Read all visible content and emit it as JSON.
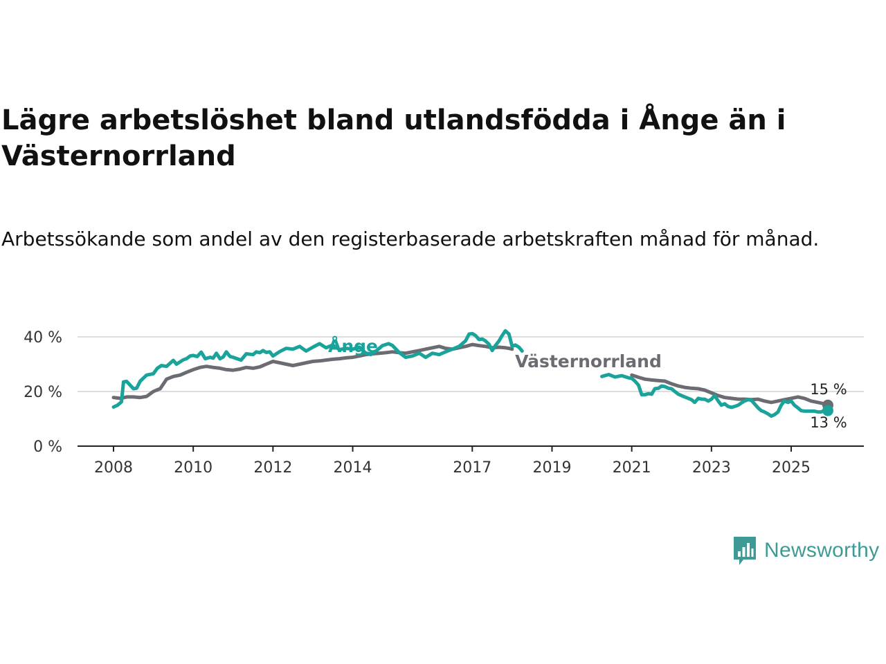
{
  "title": "Lägre arbetslöshet bland utlandsfödda i Ånge än i Västernorrland",
  "subtitle": "Arbetssökande som andel av den registerbaserade arbetskraften månad för månad.",
  "brand": {
    "name": "Newsworthy",
    "icon": "newsworthy-logo-icon",
    "color": "#3e9a94"
  },
  "colors": {
    "ange": "#1aa39a",
    "vasternorrland": "#6b6b72",
    "grid": "#dddddd",
    "axis": "#222222"
  },
  "chart_data": {
    "type": "line",
    "title": "Lägre arbetslöshet bland utlandsfödda i Ånge än i Västernorrland",
    "subtitle": "Arbetssökande som andel av den registerbaserade arbetskraften månad för månad.",
    "xlabel": "",
    "ylabel": "",
    "xlim": [
      2008,
      2026.4
    ],
    "ylim": [
      0,
      42
    ],
    "yticks": [
      0,
      20,
      40
    ],
    "ytick_labels": [
      "0 %",
      "20 %",
      "40 %"
    ],
    "xticks": [
      2008,
      2010,
      2012,
      2014,
      2017,
      2019,
      2021,
      2023,
      2025
    ],
    "xtick_labels": [
      "2008",
      "2010",
      "2012",
      "2014",
      "2017",
      "2019",
      "2021",
      "2023",
      "2025"
    ],
    "grid": true,
    "legend": "inline labels",
    "series": [
      {
        "name": "Ånge",
        "label": "Ånge",
        "end_label": "13 %",
        "segments": [
          {
            "x": [
              2008.0,
              2008.1,
              2008.2,
              2008.25,
              2008.33,
              2008.5,
              2008.58,
              2008.67,
              2008.83,
              2009.0,
              2009.1,
              2009.2,
              2009.33,
              2009.5,
              2009.58,
              2009.75,
              2009.83,
              2009.92,
              2010.0,
              2010.1,
              2010.2,
              2010.3,
              2010.42,
              2010.5,
              2010.58,
              2010.67,
              2010.75,
              2010.83,
              2010.92,
              2011.0,
              2011.1,
              2011.2,
              2011.33,
              2011.5,
              2011.58,
              2011.67,
              2011.75,
              2011.83,
              2011.92,
              2012.0,
              2012.17,
              2012.33,
              2012.5,
              2012.67,
              2012.83,
              2013.0,
              2013.17,
              2013.33,
              2013.5,
              2013.67,
              2013.83,
              2014.0,
              2014.17,
              2014.33,
              2014.45
            ],
            "y": [
              14.3,
              15.0,
              16.2,
              23.5,
              23.7,
              21.0,
              21.2,
              23.8,
              26.0,
              26.5,
              28.5,
              29.5,
              29.2,
              31.4,
              30.0,
              31.6,
              32.0,
              33.0,
              33.2,
              32.8,
              34.4,
              32.0,
              32.5,
              32.2,
              34.0,
              32.0,
              32.6,
              34.5,
              32.8,
              32.5,
              32.0,
              31.5,
              33.8,
              33.5,
              34.5,
              34.2,
              35.0,
              34.3,
              34.5,
              33.0,
              34.6,
              35.8,
              35.5,
              36.5,
              34.8,
              36.2,
              37.5,
              36.0,
              37.0,
              35.3,
              35.8,
              35.5,
              36.2,
              34.0,
              33.8
            ]
          },
          {
            "x": [
              2014.45,
              2014.6,
              2014.75,
              2014.9,
              2015.0,
              2015.17,
              2015.33,
              2015.5,
              2015.67,
              2015.83,
              2016.0,
              2016.17,
              2016.33,
              2016.5,
              2016.67,
              2016.83,
              2016.92,
              2017.0,
              2017.08,
              2017.17,
              2017.25,
              2017.33,
              2017.42,
              2017.5,
              2017.58,
              2017.67,
              2017.75,
              2017.83,
              2017.92,
              2018.0,
              2018.08,
              2018.17,
              2018.25
            ],
            "y": [
              33.5,
              35.0,
              36.8,
              37.5,
              36.8,
              34.2,
              32.5,
              33.0,
              34.0,
              32.5,
              34.0,
              33.5,
              34.5,
              35.5,
              36.5,
              38.5,
              41.0,
              41.2,
              40.5,
              39.0,
              39.2,
              38.5,
              37.3,
              35.0,
              36.8,
              38.5,
              40.5,
              42.2,
              41.0,
              36.5,
              37.0,
              36.2,
              34.8
            ]
          },
          {
            "x": [
              2020.25,
              2020.42,
              2020.58,
              2020.75,
              2020.92,
              2021.0,
              2021.08,
              2021.17,
              2021.25,
              2021.33,
              2021.42,
              2021.5,
              2021.58,
              2021.67,
              2021.75,
              2021.83,
              2021.92,
              2022.0,
              2022.08,
              2022.17,
              2022.25,
              2022.33,
              2022.42,
              2022.5,
              2022.58,
              2022.67,
              2022.75,
              2022.83,
              2022.92,
              2023.0,
              2023.08,
              2023.17,
              2023.25,
              2023.33,
              2023.42,
              2023.5,
              2023.58,
              2023.67,
              2023.75,
              2023.83,
              2023.92,
              2024.0,
              2024.08,
              2024.17,
              2024.25,
              2024.33,
              2024.42,
              2024.5,
              2024.58,
              2024.67,
              2024.75,
              2024.83,
              2024.92,
              2025.0,
              2025.08,
              2025.17,
              2025.25,
              2025.33,
              2025.42,
              2025.5,
              2025.58,
              2025.67,
              2025.75,
              2025.83,
              2025.92
            ],
            "y": [
              25.5,
              26.2,
              25.3,
              25.8,
              25.0,
              24.8,
              23.8,
              22.3,
              18.8,
              18.8,
              19.2,
              19.0,
              21.0,
              21.2,
              22.0,
              21.8,
              21.2,
              21.0,
              20.0,
              19.0,
              18.5,
              18.0,
              17.5,
              17.0,
              16.0,
              17.5,
              17.2,
              17.2,
              16.5,
              17.2,
              18.5,
              16.5,
              15.0,
              15.5,
              14.5,
              14.2,
              14.5,
              15.0,
              15.8,
              16.5,
              17.0,
              16.8,
              15.5,
              14.0,
              13.0,
              12.5,
              11.8,
              11.0,
              11.5,
              12.5,
              15.0,
              16.5,
              16.0,
              16.5,
              15.0,
              14.0,
              13.0,
              12.8,
              12.8,
              12.8,
              12.8,
              12.5,
              12.5,
              13.0,
              13.0
            ]
          }
        ]
      },
      {
        "name": "Västernorrland",
        "label": "Västernorrland",
        "end_label": "15 %",
        "segments": [
          {
            "x": [
              2008.0,
              2008.17,
              2008.33,
              2008.5,
              2008.67,
              2008.83,
              2009.0,
              2009.08,
              2009.17,
              2009.33,
              2009.5,
              2009.67,
              2009.83,
              2010.0,
              2010.17,
              2010.33,
              2010.5,
              2010.67,
              2010.83,
              2011.0,
              2011.17,
              2011.33,
              2011.5,
              2011.67,
              2011.83,
              2012.0,
              2012.17,
              2012.33,
              2012.5,
              2012.67,
              2012.83,
              2013.0,
              2013.17,
              2013.33,
              2013.5,
              2013.67,
              2013.83,
              2014.0,
              2014.17,
              2014.33,
              2014.5,
              2014.67,
              2014.83,
              2015.0,
              2015.17,
              2015.33,
              2015.5,
              2015.67,
              2015.83,
              2016.0,
              2016.17,
              2016.33,
              2016.5,
              2016.67,
              2016.83,
              2017.0,
              2017.17,
              2017.33,
              2017.5,
              2017.67,
              2017.83,
              2017.92,
              2018.0
            ],
            "y": [
              17.8,
              17.5,
              18.0,
              18.0,
              17.8,
              18.2,
              20.0,
              20.5,
              21.0,
              24.5,
              25.5,
              26.0,
              27.0,
              28.0,
              28.8,
              29.2,
              28.8,
              28.5,
              28.0,
              27.8,
              28.2,
              28.8,
              28.5,
              29.0,
              30.0,
              31.0,
              30.5,
              30.0,
              29.5,
              30.0,
              30.5,
              31.0,
              31.2,
              31.5,
              31.8,
              32.0,
              32.3,
              32.5,
              33.0,
              33.5,
              33.8,
              34.0,
              34.2,
              34.5,
              34.2,
              34.0,
              34.5,
              35.0,
              35.5,
              36.0,
              36.5,
              35.8,
              35.5,
              36.0,
              36.5,
              37.2,
              36.8,
              36.5,
              36.0,
              36.2,
              36.0,
              35.8,
              35.5
            ]
          },
          {
            "x": [
              2021.0,
              2021.17,
              2021.33,
              2021.5,
              2021.67,
              2021.83,
              2022.0,
              2022.17,
              2022.33,
              2022.5,
              2022.67,
              2022.83,
              2023.0,
              2023.17,
              2023.33,
              2023.5,
              2023.67,
              2023.83,
              2024.0,
              2024.17,
              2024.33,
              2024.5,
              2024.67,
              2024.83,
              2025.0,
              2025.17,
              2025.33,
              2025.5,
              2025.67,
              2025.83,
              2025.92
            ],
            "y": [
              26.0,
              25.2,
              24.5,
              24.2,
              24.0,
              23.8,
              22.8,
              22.0,
              21.5,
              21.2,
              21.0,
              20.5,
              19.5,
              18.5,
              17.8,
              17.5,
              17.2,
              17.2,
              17.0,
              17.2,
              16.5,
              16.0,
              16.5,
              17.0,
              17.5,
              18.0,
              17.5,
              16.5,
              16.0,
              15.5,
              15.0
            ]
          }
        ]
      }
    ]
  }
}
